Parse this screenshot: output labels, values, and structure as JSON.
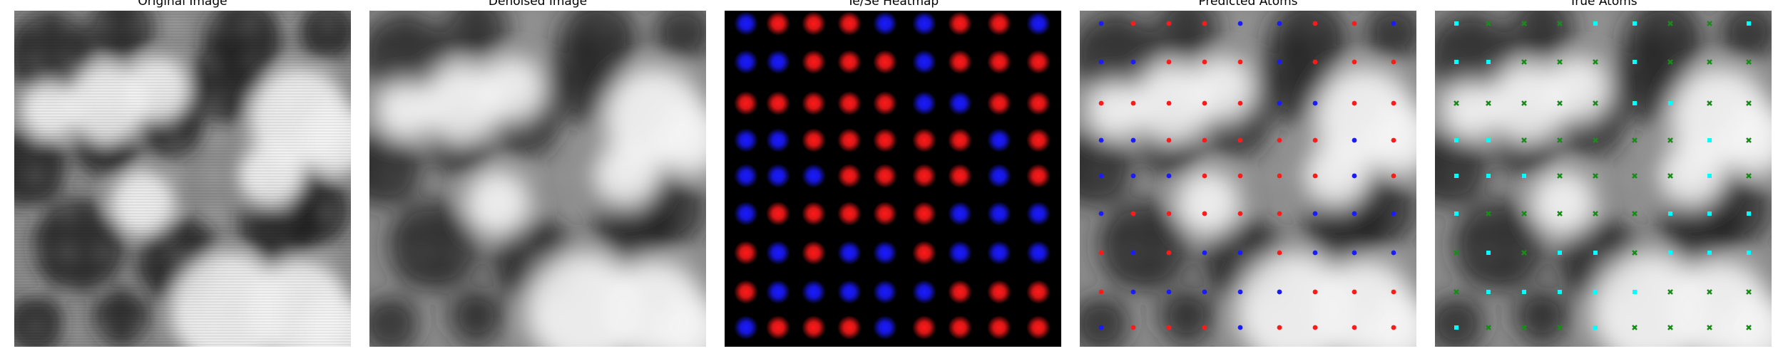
{
  "panels": [
    {
      "id": "original",
      "title": "Original Image",
      "image": "noisy-grayscale-micrograph"
    },
    {
      "id": "denoised",
      "title": "Denoised Image",
      "image": "smoothed-grayscale-micrograph"
    },
    {
      "id": "heatmap",
      "title": "Te/Se Heatmap",
      "image": "red-blue-atom-heatmap-on-black"
    },
    {
      "id": "predicted",
      "title": "Predicted Atoms",
      "image": "micrograph-with-predicted-atom-markers"
    },
    {
      "id": "true",
      "title": "True Atoms",
      "image": "micrograph-with-true-atom-markers"
    }
  ],
  "colors": {
    "te": "#ff1a1a",
    "se": "#1a1aff",
    "true_te": "#00ffff",
    "true_se": "#1a8a1a",
    "heatmap_bg": "#000000"
  },
  "lattice": {
    "rows": 9,
    "cols": 9,
    "types": [
      "BRRRBBRRB",
      "BBRRRBRRR",
      "RRRRRBBRR",
      "BBRRRRRBR",
      "BBBRRRRBR",
      "BRRRRRBBB",
      "RBRBBRBBB",
      "RBBBBBRRR",
      "BRRRBRRRR"
    ]
  }
}
